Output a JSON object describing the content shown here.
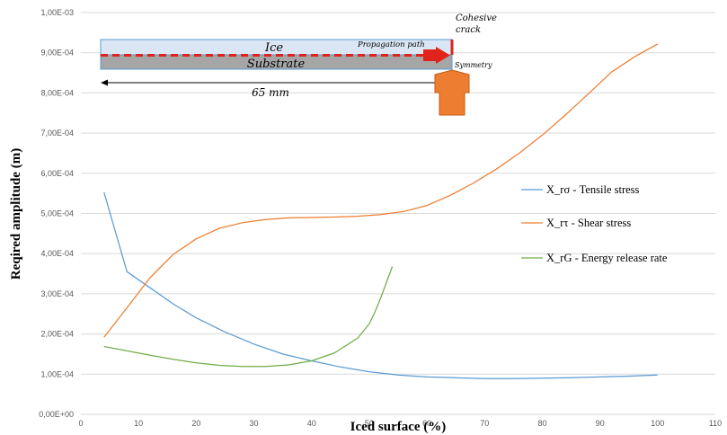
{
  "chart_data": {
    "type": "line",
    "title": "",
    "xlabel": "Iced surface (%)",
    "ylabel": "Reqired amplitude (m)",
    "xlim": [
      0,
      110
    ],
    "ylim": [
      0,
      0.001
    ],
    "x_ticks": [
      "0",
      "10",
      "20",
      "30",
      "40",
      "50",
      "60",
      "70",
      "80",
      "90",
      "100",
      "110"
    ],
    "y_ticks": [
      "0,00E+00",
      "1,00E-04",
      "2,00E-04",
      "3,00E-04",
      "4,00E-04",
      "5,00E-04",
      "6,00E-04",
      "7,00E-04",
      "8,00E-04",
      "9,00E-04",
      "1,00E-03"
    ],
    "grid": "horizontal",
    "legend": "right",
    "series": [
      {
        "name": "X_rσ - Tensile stress",
        "color": "#5b9bd5",
        "x": [
          4,
          8,
          12,
          16,
          20,
          25,
          30,
          35,
          40,
          45,
          50,
          55,
          60,
          65,
          70,
          75,
          80,
          85,
          90,
          95,
          100
        ],
        "y": [
          0.000553,
          0.000355,
          0.000315,
          0.000275,
          0.00024,
          0.000205,
          0.000175,
          0.00015,
          0.000133,
          0.000118,
          0.000106,
          9.8e-05,
          9.3e-05,
          9.1e-05,
          8.9e-05,
          8.9e-05,
          9e-05,
          9.1e-05,
          9.3e-05,
          9.5e-05,
          9.8e-05
        ]
      },
      {
        "name": "X_rτ - Shear stress",
        "color": "#ed7d31",
        "x": [
          4,
          8,
          12,
          16,
          20,
          24,
          28,
          32,
          36,
          40,
          44,
          48,
          52,
          56,
          60,
          64,
          68,
          72,
          76,
          80,
          84,
          88,
          92,
          96,
          100
        ],
        "y": [
          0.000192,
          0.000265,
          0.00034,
          0.000398,
          0.000437,
          0.000463,
          0.000477,
          0.000485,
          0.000489,
          0.00049,
          0.000491,
          0.000493,
          0.000497,
          0.000505,
          0.00052,
          0.000545,
          0.000575,
          0.00061,
          0.00065,
          0.000695,
          0.000745,
          0.000798,
          0.000852,
          0.00089,
          0.000922
        ]
      },
      {
        "name": "X_rG - Energy release rate",
        "color": "#70ad47",
        "x": [
          4,
          8,
          12,
          16,
          20,
          24,
          28,
          32,
          36,
          40,
          44,
          48,
          50,
          51,
          52,
          54
        ],
        "y": [
          0.000169,
          0.000158,
          0.000147,
          0.000137,
          0.000128,
          0.000122,
          0.000119,
          0.000119,
          0.000123,
          0.000133,
          0.000153,
          0.00019,
          0.000225,
          0.000255,
          0.00029,
          0.000368
        ]
      }
    ]
  },
  "inset": {
    "ice_label": "Ice",
    "substrate_label": "Substrate",
    "propagation_label": "Propagation path",
    "cohesive_label_1": "Cohesive",
    "cohesive_label_2": "crack",
    "symmetry_label": "Symmetry",
    "length_label": "65 mm",
    "colors": {
      "ice": "#dae6f3",
      "substrate": "#a6a6a6",
      "path": "#e0241b",
      "arrow": "#ed7d31"
    }
  }
}
